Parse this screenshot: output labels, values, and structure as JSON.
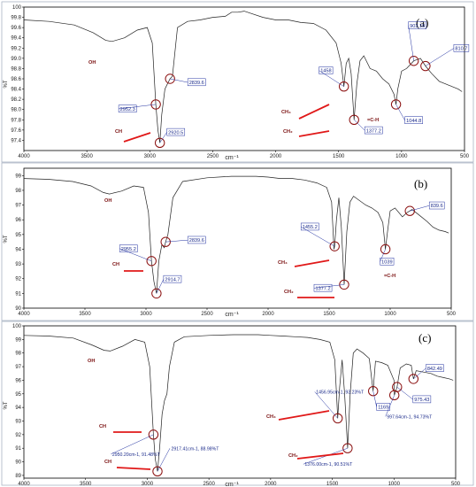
{
  "chart_data": [
    {
      "type": "line",
      "panel_label": "(a)",
      "ylabel": "%T",
      "xlabel": "cm⁻¹",
      "xlim": [
        4000,
        500
      ],
      "ylim": [
        97.2,
        100
      ],
      "x_ticks": [
        "4000",
        "3500",
        "3000",
        "2500",
        "2000",
        "1500",
        "1000",
        "500"
      ],
      "y_ticks": [
        "100",
        "99.8",
        "99.6",
        "99.4",
        "99.2",
        "99.0",
        "98.8",
        "98.6",
        "98.4",
        "98.2",
        "98.0",
        "97.8",
        "97.6",
        "97.4"
      ],
      "x": [
        4000,
        3800,
        3600,
        3450,
        3350,
        3300,
        3200,
        3100,
        3020,
        2980,
        2952,
        2935,
        2920,
        2905,
        2880,
        2860,
        2839,
        2820,
        2780,
        2700,
        2600,
        2500,
        2400,
        2350,
        2300,
        2250,
        2200,
        2100,
        2000,
        1900,
        1800,
        1700,
        1600,
        1520,
        1480,
        1458,
        1440,
        1420,
        1400,
        1377,
        1355,
        1330,
        1300,
        1250,
        1200,
        1150,
        1100,
        1060,
        1044,
        1030,
        1000,
        960,
        903,
        850,
        810,
        760,
        700,
        650,
        600,
        550,
        520
      ],
      "y": [
        99.75,
        99.72,
        99.65,
        99.5,
        99.35,
        99.33,
        99.4,
        99.55,
        99.6,
        99.3,
        98.1,
        97.6,
        97.35,
        97.9,
        98.4,
        98.5,
        98.6,
        98.65,
        99.6,
        99.72,
        99.75,
        99.8,
        99.82,
        99.9,
        99.9,
        99.92,
        99.88,
        99.8,
        99.75,
        99.75,
        99.7,
        99.68,
        99.55,
        99.3,
        98.9,
        98.45,
        98.9,
        99.0,
        98.7,
        97.8,
        98.5,
        98.95,
        99.05,
        98.8,
        98.75,
        98.6,
        98.5,
        98.3,
        98.1,
        98.4,
        98.75,
        98.8,
        98.95,
        99.0,
        98.85,
        98.7,
        98.55,
        98.5,
        98.45,
        98.4,
        98.35
      ],
      "peaks": [
        {
          "label": "2952.3",
          "x": 2952,
          "y": 98.1
        },
        {
          "label": "2920.5",
          "x": 2920,
          "y": 97.35
        },
        {
          "label": "2839.6",
          "x": 2839,
          "y": 98.6
        },
        {
          "label": "1458",
          "x": 1458,
          "y": 98.45
        },
        {
          "label": "1377.2",
          "x": 1377,
          "y": 97.8
        },
        {
          "label": "1044.8",
          "x": 1044,
          "y": 98.1
        },
        {
          "label": "903.18",
          "x": 903,
          "y": 98.95
        },
        {
          "label": "810.7",
          "x": 810,
          "y": 98.85
        }
      ],
      "annotations": [
        "OH",
        "CH",
        "CH₃",
        "CH₂",
        "=C-H"
      ]
    },
    {
      "type": "line",
      "panel_label": "(b)",
      "ylabel": "%T",
      "xlabel": "cm⁻¹",
      "xlim": [
        4000,
        500
      ],
      "ylim": [
        90,
        99.5
      ],
      "x_ticks": [
        "4000",
        "3500",
        "3000",
        "2500",
        "2000",
        "1500",
        "1000",
        "500"
      ],
      "y_ticks": [
        "99",
        "98",
        "97",
        "96",
        "95",
        "94",
        "93",
        "92",
        "91",
        "90"
      ],
      "x": [
        4000,
        3800,
        3600,
        3450,
        3350,
        3300,
        3200,
        3100,
        3020,
        2980,
        2955,
        2935,
        2914,
        2895,
        2870,
        2850,
        2839,
        2820,
        2780,
        2700,
        2500,
        2300,
        2100,
        2000,
        1900,
        1800,
        1700,
        1600,
        1520,
        1480,
        1460,
        1455,
        1440,
        1420,
        1400,
        1377,
        1355,
        1330,
        1300,
        1250,
        1200,
        1150,
        1100,
        1060,
        1039,
        1020,
        1000,
        960,
        900,
        860,
        839,
        820,
        760,
        700,
        650,
        600,
        550,
        520
      ],
      "y": [
        98.8,
        98.75,
        98.6,
        98.3,
        97.85,
        97.75,
        97.95,
        98.3,
        98.2,
        96.5,
        93.2,
        91.8,
        91.0,
        93.2,
        94.3,
        94.1,
        94.5,
        95.0,
        97.5,
        98.6,
        98.85,
        98.95,
        98.95,
        98.9,
        98.8,
        98.8,
        98.7,
        98.5,
        98.2,
        97.2,
        94.0,
        94.2,
        96.0,
        97.5,
        95.5,
        91.6,
        95.2,
        97.2,
        97.6,
        97.3,
        97.0,
        96.8,
        96.5,
        95.8,
        94.0,
        95.3,
        96.6,
        96.8,
        96.2,
        96.5,
        96.6,
        96.7,
        96.3,
        95.9,
        95.5,
        95.3,
        95.2,
        95.1
      ],
      "peaks": [
        {
          "label": "2955.2",
          "x": 2955,
          "y": 93.2
        },
        {
          "label": "2914.7",
          "x": 2914,
          "y": 91.0
        },
        {
          "label": "2839.6",
          "x": 2839,
          "y": 94.5
        },
        {
          "label": "1455.2",
          "x": 1455,
          "y": 94.2
        },
        {
          "label": "1377.2",
          "x": 1377,
          "y": 91.6
        },
        {
          "label": "1039",
          "x": 1039,
          "y": 94.0
        },
        {
          "label": "839.6",
          "x": 839,
          "y": 96.6
        }
      ],
      "annotations": [
        "OH",
        "CH",
        "CH₃",
        "CH₂",
        "=C-H"
      ]
    },
    {
      "type": "line",
      "panel_label": "(c)",
      "ylabel": "%T",
      "xlabel": "cm⁻¹",
      "xlim": [
        4000,
        500
      ],
      "ylim": [
        88.8,
        100
      ],
      "x_ticks": [
        "4000",
        "3500",
        "3000",
        "2500",
        "2000",
        "1500",
        "1000",
        "500"
      ],
      "y_ticks": [
        "100",
        "99",
        "98",
        "97",
        "96",
        "95",
        "94",
        "93",
        "92",
        "91",
        "90",
        "89"
      ],
      "x": [
        4000,
        3800,
        3600,
        3450,
        3350,
        3300,
        3200,
        3100,
        3020,
        2980,
        2950,
        2935,
        2917,
        2900,
        2880,
        2860,
        2840,
        2820,
        2780,
        2700,
        2500,
        2300,
        2100,
        2000,
        1900,
        1800,
        1700,
        1600,
        1520,
        1480,
        1460,
        1456,
        1440,
        1420,
        1400,
        1376,
        1355,
        1330,
        1300,
        1250,
        1200,
        1169,
        1150,
        1100,
        1050,
        1000,
        997,
        975,
        950,
        900,
        860,
        842,
        820,
        760,
        700,
        650,
        600,
        550,
        520
      ],
      "y": [
        99.3,
        99.25,
        99.1,
        98.6,
        98.2,
        98.15,
        98.5,
        99.0,
        98.8,
        97.0,
        92.0,
        90.2,
        89.3,
        91.0,
        93.5,
        94.5,
        95.0,
        97.0,
        98.8,
        99.2,
        99.3,
        99.35,
        99.35,
        99.3,
        99.25,
        99.2,
        99.15,
        99.0,
        98.8,
        97.5,
        94.0,
        93.2,
        95.5,
        97.5,
        95.0,
        91.0,
        95.0,
        98.0,
        98.3,
        98.0,
        97.6,
        95.2,
        97.4,
        97.3,
        97.1,
        96.0,
        94.9,
        95.5,
        96.9,
        97.2,
        97.1,
        96.1,
        96.7,
        96.6,
        96.5,
        96.3,
        96.2,
        96.1,
        96.0
      ],
      "peaks": [
        {
          "label": "2950.20cm-1, 91.48%T",
          "x": 2950,
          "y": 92.0
        },
        {
          "label": "2917.41cm-1, 88.98%T",
          "x": 2917,
          "y": 89.3
        },
        {
          "label": "1456.95cm-1, 93.23%T",
          "x": 1456,
          "y": 93.2
        },
        {
          "label": "1376.00cm-1, 90.51%T",
          "x": 1376,
          "y": 91.0
        },
        {
          "label": "1169",
          "x": 1169,
          "y": 95.2
        },
        {
          "label": "997.64cm-1, 94.73%T",
          "x": 997,
          "y": 94.9
        },
        {
          "label": "975.43",
          "x": 975,
          "y": 95.5
        },
        {
          "label": "842.49",
          "x": 842,
          "y": 96.1
        }
      ],
      "annotations": [
        "OH",
        "CH",
        "CH₃",
        "CH₂",
        "CH"
      ]
    }
  ]
}
